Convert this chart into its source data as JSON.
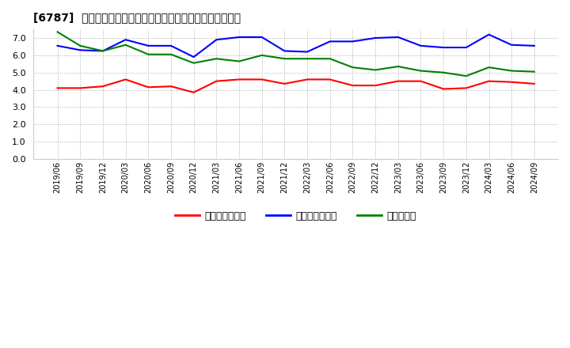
{
  "title": "[6787]  売上債権回転率、買入債務回転率、在庫回転率の推移",
  "x_labels": [
    "2019/06",
    "2019/09",
    "2019/12",
    "2020/03",
    "2020/06",
    "2020/09",
    "2020/12",
    "2021/03",
    "2021/06",
    "2021/09",
    "2021/12",
    "2022/03",
    "2022/06",
    "2022/09",
    "2022/12",
    "2023/03",
    "2023/06",
    "2023/09",
    "2023/12",
    "2024/03",
    "2024/06",
    "2024/09"
  ],
  "accounts_receivable_turnover": [
    4.1,
    4.1,
    4.2,
    4.6,
    4.15,
    4.2,
    3.85,
    4.5,
    4.6,
    4.6,
    4.35,
    4.6,
    4.6,
    4.25,
    4.25,
    4.5,
    4.5,
    4.05,
    4.1,
    4.5,
    4.45,
    4.35
  ],
  "accounts_payable_turnover": [
    6.55,
    6.3,
    6.25,
    6.9,
    6.55,
    6.55,
    5.9,
    6.9,
    7.05,
    7.05,
    6.25,
    6.2,
    6.8,
    6.8,
    7.0,
    7.05,
    6.55,
    6.45,
    6.45,
    7.2,
    6.6,
    6.55
  ],
  "inventory_turnover": [
    7.35,
    6.55,
    6.25,
    6.6,
    6.05,
    6.05,
    5.55,
    5.8,
    5.65,
    6.0,
    5.8,
    5.8,
    5.8,
    5.3,
    5.15,
    5.35,
    5.1,
    5.0,
    4.8,
    5.3,
    5.1,
    5.05
  ],
  "colors": {
    "accounts_receivable": "#ff0000",
    "accounts_payable": "#0000ff",
    "inventory": "#008000"
  },
  "legend_labels": [
    "売上債権回転率",
    "買入債務回転率",
    "在庫回転率"
  ],
  "ylim": [
    0.0,
    7.5
  ],
  "yticks": [
    0.0,
    1.0,
    2.0,
    3.0,
    4.0,
    5.0,
    6.0,
    7.0
  ],
  "background_color": "#ffffff",
  "grid_color": "#aaaaaa"
}
